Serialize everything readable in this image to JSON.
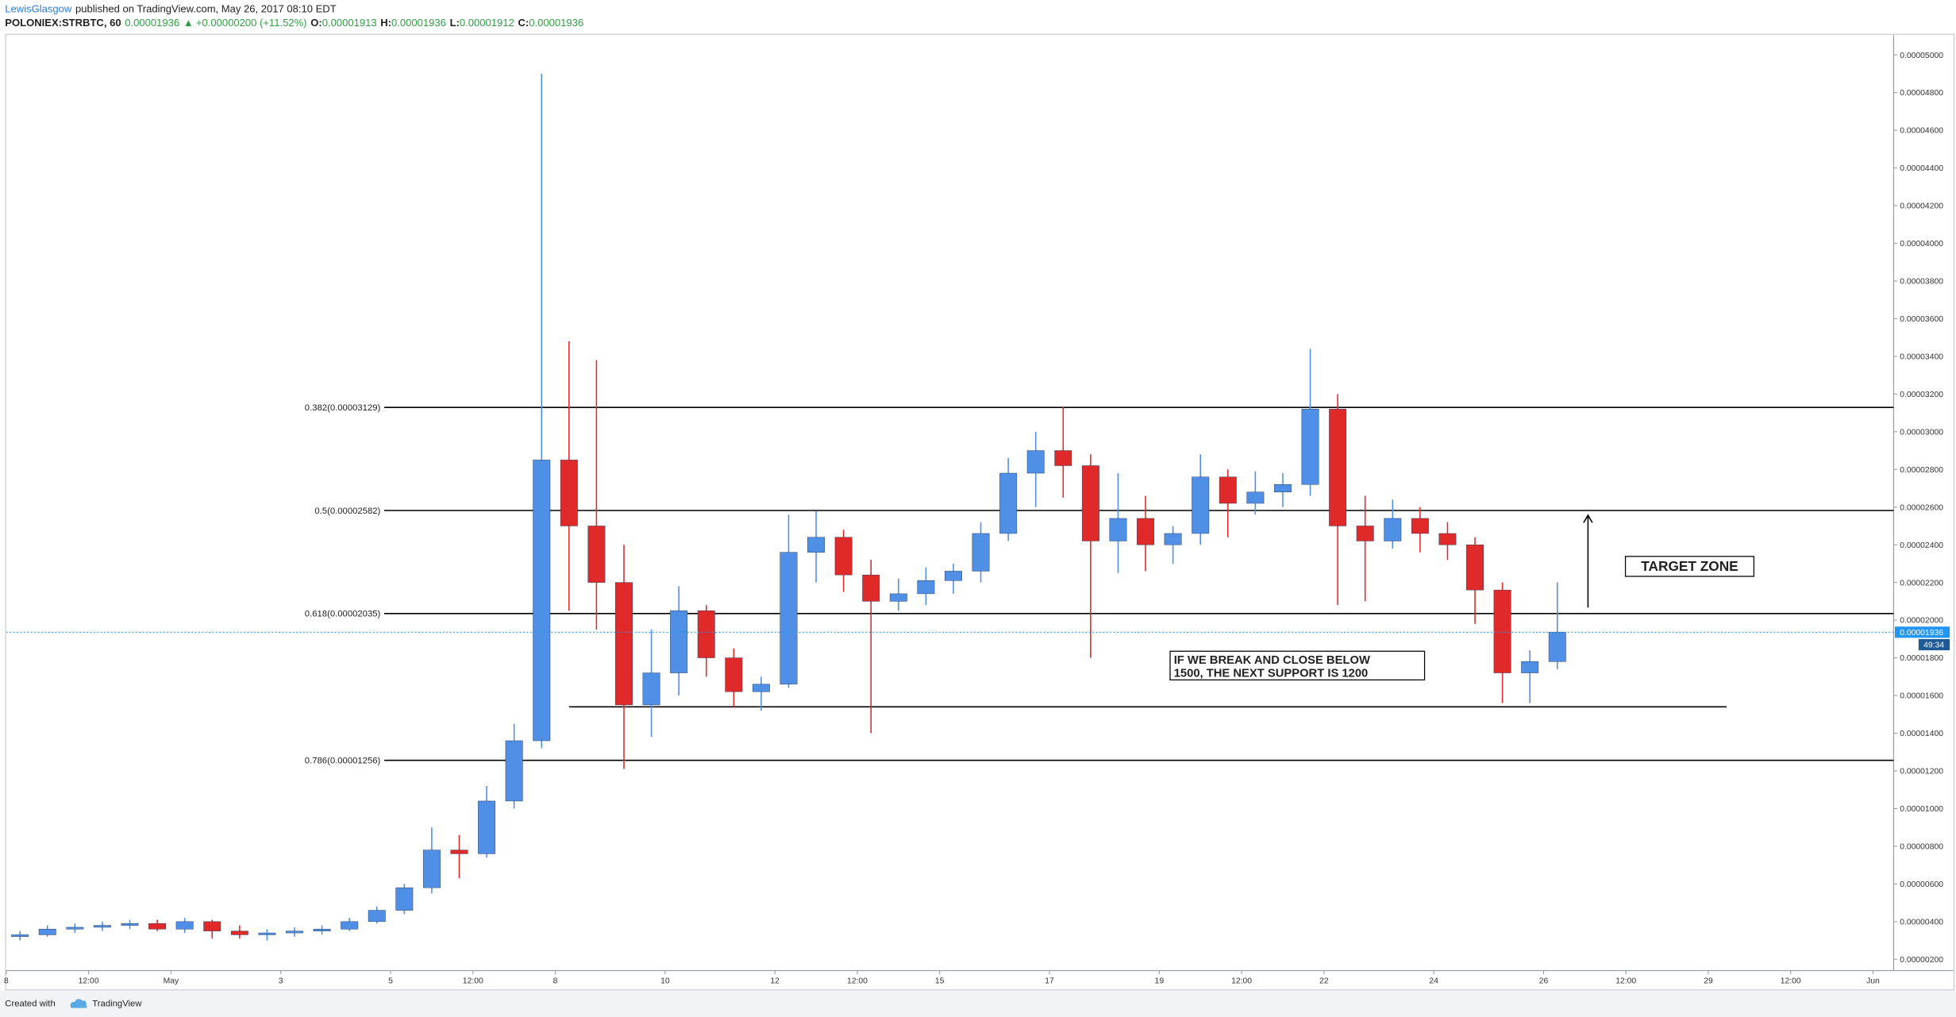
{
  "header": {
    "author": "LewisGlasgow",
    "published": "published on TradingView.com, May 26, 2017 08:10 EDT",
    "symbol": "POLONIEX:STRBTC, 60",
    "price": "0.00001936",
    "arrow": "▲",
    "change": "+0.00000200 (+11.52%)",
    "o_label": "O:",
    "o": "0.00001913",
    "h_label": "H:",
    "h": "0.00001936",
    "l_label": "L:",
    "l": "0.00001912",
    "c_label": "C:",
    "c": "0.00001936"
  },
  "footer": {
    "created": "Created with",
    "brand": "TradingView"
  },
  "chart_data": {
    "type": "candlestick",
    "up_color": "#4f8fe6",
    "down_color": "#e02a2a",
    "candles": {
      "x": [
        "Apr 28 00:00",
        "Apr 28 12:00",
        "Apr 29 00:00",
        "Apr 29 12:00",
        "Apr 30 00:00",
        "Apr 30 12:00",
        "May 1 00:00",
        "May 1 12:00",
        "May 2 00:00",
        "May 2 12:00",
        "May 3 00:00",
        "May 3 12:00",
        "May 4 00:00",
        "May 4 12:00",
        "May 5 00:00",
        "May 5 12:00",
        "May 6 00:00",
        "May 6 12:00",
        "May 7 00:00",
        "May 7 12:00",
        "May 8 00:00",
        "May 8 12:00",
        "May 9 00:00",
        "May 9 12:00",
        "May 10 00:00",
        "May 10 12:00",
        "May 11 00:00",
        "May 11 12:00",
        "May 12 00:00",
        "May 12 12:00",
        "May 13 00:00",
        "May 13 12:00",
        "May 14 00:00",
        "May 14 12:00",
        "May 15 00:00",
        "May 15 12:00",
        "May 16 00:00",
        "May 16 12:00",
        "May 17 00:00",
        "May 17 12:00",
        "May 18 00:00",
        "May 18 12:00",
        "May 19 00:00",
        "May 19 12:00",
        "May 20 00:00",
        "May 20 12:00",
        "May 21 00:00",
        "May 21 12:00",
        "May 22 00:00",
        "May 22 12:00",
        "May 23 00:00",
        "May 23 12:00",
        "May 24 00:00",
        "May 24 12:00",
        "May 25 00:00",
        "May 25 12:00",
        "May 26 00:00"
      ],
      "open": [
        3.2e-06,
        3.3e-06,
        3.6e-06,
        3.7e-06,
        3.8e-06,
        3.9e-06,
        3.6e-06,
        4e-06,
        3.5e-06,
        3.3e-06,
        3.4e-06,
        3.5e-06,
        3.6e-06,
        4e-06,
        4.6e-06,
        5.8e-06,
        7.8e-06,
        7.6e-06,
        1.04e-05,
        1.36e-05,
        2.85e-05,
        2.5e-05,
        2.2e-05,
        1.55e-05,
        1.72e-05,
        2.05e-05,
        1.8e-05,
        1.62e-05,
        1.66e-05,
        2.36e-05,
        2.44e-05,
        2.24e-05,
        2.1e-05,
        2.14e-05,
        2.21e-05,
        2.26e-05,
        2.46e-05,
        2.78e-05,
        2.9e-05,
        2.82e-05,
        2.42e-05,
        2.54e-05,
        2.4e-05,
        2.46e-05,
        2.76e-05,
        2.62e-05,
        2.68e-05,
        2.72e-05,
        3.12e-05,
        2.5e-05,
        2.42e-05,
        2.54e-05,
        2.46e-05,
        2.4e-05,
        2.16e-05,
        1.72e-05,
        1.78e-05
      ],
      "high": [
        3.5e-06,
        3.8e-06,
        3.9e-06,
        4e-06,
        4.1e-06,
        4.1e-06,
        4.2e-06,
        4.1e-06,
        3.8e-06,
        3.6e-06,
        3.7e-06,
        3.8e-06,
        4.2e-06,
        4.8e-06,
        6e-06,
        9e-06,
        8.6e-06,
        1.12e-05,
        1.45e-05,
        4.9e-05,
        3.48e-05,
        3.38e-05,
        2.4e-05,
        1.95e-05,
        2.18e-05,
        2.08e-05,
        1.85e-05,
        1.7e-05,
        2.56e-05,
        2.58e-05,
        2.48e-05,
        2.32e-05,
        2.22e-05,
        2.28e-05,
        2.3e-05,
        2.52e-05,
        2.86e-05,
        3e-05,
        3.13e-05,
        2.88e-05,
        2.78e-05,
        2.66e-05,
        2.5e-05,
        2.88e-05,
        2.8e-05,
        2.79e-05,
        2.78e-05,
        3.44e-05,
        3.2e-05,
        2.66e-05,
        2.64e-05,
        2.6e-05,
        2.52e-05,
        2.44e-05,
        2.2e-05,
        1.84e-05,
        2.2e-05
      ],
      "low": [
        3e-06,
        3.2e-06,
        3.4e-06,
        3.5e-06,
        3.6e-06,
        3.5e-06,
        3.4e-06,
        3.1e-06,
        3.1e-06,
        3e-06,
        3.2e-06,
        3.3e-06,
        3.5e-06,
        3.9e-06,
        4.4e-06,
        5.5e-06,
        6.3e-06,
        7.4e-06,
        1e-05,
        1.32e-05,
        2.05e-05,
        1.95e-05,
        1.21e-05,
        1.38e-05,
        1.6e-05,
        1.7e-05,
        1.54e-05,
        1.52e-05,
        1.64e-05,
        2.2e-05,
        2.15e-05,
        1.4e-05,
        2.05e-05,
        2.08e-05,
        2.14e-05,
        2.2e-05,
        2.42e-05,
        2.6e-05,
        2.65e-05,
        1.8e-05,
        2.25e-05,
        2.26e-05,
        2.3e-05,
        2.4e-05,
        2.44e-05,
        2.56e-05,
        2.6e-05,
        2.66e-05,
        2.08e-05,
        2.1e-05,
        2.38e-05,
        2.36e-05,
        2.32e-05,
        1.98e-05,
        1.56e-05,
        1.56e-05,
        1.74e-05
      ],
      "close": [
        3.3e-06,
        3.6e-06,
        3.7e-06,
        3.8e-06,
        3.9e-06,
        3.6e-06,
        4e-06,
        3.5e-06,
        3.3e-06,
        3.4e-06,
        3.5e-06,
        3.6e-06,
        4e-06,
        4.6e-06,
        5.8e-06,
        7.8e-06,
        7.6e-06,
        1.04e-05,
        1.36e-05,
        2.85e-05,
        2.5e-05,
        2.2e-05,
        1.55e-05,
        1.72e-05,
        2.05e-05,
        1.8e-05,
        1.62e-05,
        1.66e-05,
        2.36e-05,
        2.44e-05,
        2.24e-05,
        2.1e-05,
        2.14e-05,
        2.21e-05,
        2.26e-05,
        2.46e-05,
        2.78e-05,
        2.9e-05,
        2.82e-05,
        2.42e-05,
        2.54e-05,
        2.4e-05,
        2.46e-05,
        2.76e-05,
        2.62e-05,
        2.68e-05,
        2.72e-05,
        3.12e-05,
        2.5e-05,
        2.42e-05,
        2.54e-05,
        2.46e-05,
        2.4e-05,
        2.16e-05,
        1.72e-05,
        1.78e-05,
        1.936e-05
      ]
    },
    "xlim": [
      "Apr 28 00:00",
      "Jun 1 09:00"
    ],
    "xticks": [
      {
        "value": "Apr 28 00:00",
        "label": "8"
      },
      {
        "value": "Apr 29 12:00",
        "label": "12:00"
      },
      {
        "value": "May 1 00:00",
        "label": "May"
      },
      {
        "value": "May 3 00:00",
        "label": "3"
      },
      {
        "value": "May 5 00:00",
        "label": "5"
      },
      {
        "value": "May 6 12:00",
        "label": "12:00"
      },
      {
        "value": "May 8 00:00",
        "label": "8"
      },
      {
        "value": "May 10 00:00",
        "label": "10"
      },
      {
        "value": "May 12 00:00",
        "label": "12"
      },
      {
        "value": "May 13 12:00",
        "label": "12:00"
      },
      {
        "value": "May 15 00:00",
        "label": "15"
      },
      {
        "value": "May 17 00:00",
        "label": "17"
      },
      {
        "value": "May 19 00:00",
        "label": "19"
      },
      {
        "value": "May 20 12:00",
        "label": "12:00"
      },
      {
        "value": "May 22 00:00",
        "label": "22"
      },
      {
        "value": "May 24 00:00",
        "label": "24"
      },
      {
        "value": "May 26 00:00",
        "label": "26"
      },
      {
        "value": "May 27 12:00",
        "label": "12:00"
      },
      {
        "value": "May 29 00:00",
        "label": "29"
      },
      {
        "value": "May 30 12:00",
        "label": "12:00"
      },
      {
        "value": "Jun 1 00:00",
        "label": "Jun"
      }
    ],
    "ylim": [
      1.4e-06,
      5.106e-05
    ],
    "yticks": [
      {
        "value": 2e-06,
        "label": "0.00000200"
      },
      {
        "value": 4e-06,
        "label": "0.00000400"
      },
      {
        "value": 6e-06,
        "label": "0.00000600"
      },
      {
        "value": 8e-06,
        "label": "0.00000800"
      },
      {
        "value": 1e-05,
        "label": "0.00001000"
      },
      {
        "value": 1.2e-05,
        "label": "0.00001200"
      },
      {
        "value": 1.4e-05,
        "label": "0.00001400"
      },
      {
        "value": 1.6e-05,
        "label": "0.00001600"
      },
      {
        "value": 1.8e-05,
        "label": "0.00001800"
      },
      {
        "value": 2e-05,
        "label": "0.00002000"
      },
      {
        "value": 2.2e-05,
        "label": "0.00002200"
      },
      {
        "value": 2.4e-05,
        "label": "0.00002400"
      },
      {
        "value": 2.6e-05,
        "label": "0.00002600"
      },
      {
        "value": 2.8e-05,
        "label": "0.00002800"
      },
      {
        "value": 3e-05,
        "label": "0.00003000"
      },
      {
        "value": 3.2e-05,
        "label": "0.00003200"
      },
      {
        "value": 3.4e-05,
        "label": "0.00003400"
      },
      {
        "value": 3.6e-05,
        "label": "0.00003600"
      },
      {
        "value": 3.8e-05,
        "label": "0.00003800"
      },
      {
        "value": 4e-05,
        "label": "0.00004000"
      },
      {
        "value": 4.2e-05,
        "label": "0.00004200"
      },
      {
        "value": 4.4e-05,
        "label": "0.00004400"
      },
      {
        "value": 4.6e-05,
        "label": "0.00004600"
      },
      {
        "value": 4.8e-05,
        "label": "0.00004800"
      },
      {
        "value": 5e-05,
        "label": "0.00005000"
      }
    ],
    "levels": [
      {
        "value": 3.129e-05,
        "label": "0.382(0.00003129)"
      },
      {
        "value": 2.582e-05,
        "label": "0.5(0.00002582)"
      },
      {
        "value": 2.035e-05,
        "label": "0.618(0.00002035)"
      },
      {
        "value": 1.256e-05,
        "label": "0.786(0.00001256)"
      }
    ],
    "support": {
      "value": 1.54e-05,
      "x": [
        "May 8 06:00",
        "May 29 08:00"
      ]
    },
    "last_price": {
      "value": 1.936e-05,
      "label": "0.00001936",
      "timer": "49:34"
    },
    "annotations": {
      "target": "TARGET ZONE",
      "note": [
        "IF WE BREAK AND CLOSE BELOW",
        "1500, THE NEXT SUPPORT IS 1200"
      ]
    }
  }
}
